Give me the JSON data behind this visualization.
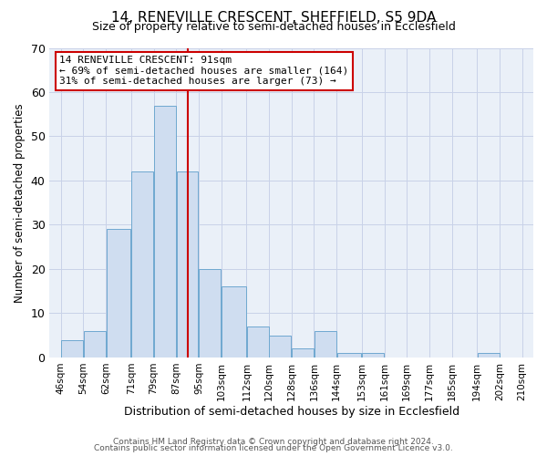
{
  "title1": "14, RENEVILLE CRESCENT, SHEFFIELD, S5 9DA",
  "title2": "Size of property relative to semi-detached houses in Ecclesfield",
  "xlabel": "Distribution of semi-detached houses by size in Ecclesfield",
  "ylabel": "Number of semi-detached properties",
  "bar_left_edges": [
    46,
    54,
    62,
    71,
    79,
    87,
    95,
    103,
    112,
    120,
    128,
    136,
    144,
    153,
    161,
    169,
    177,
    185,
    194,
    202
  ],
  "bar_widths": [
    8,
    8,
    9,
    8,
    8,
    8,
    8,
    9,
    8,
    8,
    8,
    8,
    9,
    8,
    8,
    8,
    8,
    9,
    8,
    8
  ],
  "bar_heights": [
    4,
    6,
    29,
    42,
    57,
    42,
    20,
    16,
    7,
    5,
    2,
    6,
    1,
    1,
    0,
    0,
    0,
    0,
    1,
    0
  ],
  "tick_labels": [
    "46sqm",
    "54sqm",
    "62sqm",
    "71sqm",
    "79sqm",
    "87sqm",
    "95sqm",
    "103sqm",
    "112sqm",
    "120sqm",
    "128sqm",
    "136sqm",
    "144sqm",
    "153sqm",
    "161sqm",
    "169sqm",
    "177sqm",
    "185sqm",
    "194sqm",
    "202sqm",
    "210sqm"
  ],
  "tick_positions": [
    46,
    54,
    62,
    71,
    79,
    87,
    95,
    103,
    112,
    120,
    128,
    136,
    144,
    153,
    161,
    169,
    177,
    185,
    194,
    202,
    210
  ],
  "bar_color": "#cfddf0",
  "bar_edge_color": "#6fa8d0",
  "vline_x": 91,
  "vline_color": "#cc0000",
  "ylim": [
    0,
    70
  ],
  "yticks": [
    0,
    10,
    20,
    30,
    40,
    50,
    60,
    70
  ],
  "annotation_title": "14 RENEVILLE CRESCENT: 91sqm",
  "annotation_line1": "← 69% of semi-detached houses are smaller (164)",
  "annotation_line2": "31% of semi-detached houses are larger (73) →",
  "annotation_box_color": "#cc0000",
  "footer1": "Contains HM Land Registry data © Crown copyright and database right 2024.",
  "footer2": "Contains public sector information licensed under the Open Government Licence v3.0.",
  "bg_color": "#eaf0f8",
  "grid_color": "#c8d2e8"
}
